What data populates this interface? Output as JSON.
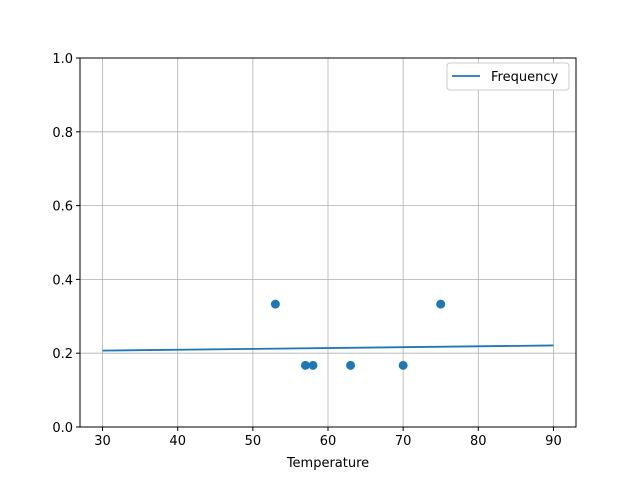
{
  "chart_data": {
    "type": "scatter",
    "title": "",
    "xlabel": "Temperature",
    "ylabel": "",
    "xlim": [
      27,
      93
    ],
    "ylim": [
      0,
      1
    ],
    "xticks": [
      30,
      40,
      50,
      60,
      70,
      80,
      90
    ],
    "yticks": [
      0.0,
      0.2,
      0.4,
      0.6,
      0.8,
      1.0
    ],
    "xtick_labels": [
      "30",
      "40",
      "50",
      "60",
      "70",
      "80",
      "90"
    ],
    "ytick_labels": [
      "0.0",
      "0.2",
      "0.4",
      "0.6",
      "0.8",
      "1.0"
    ],
    "grid": true,
    "legend_position": "top-right",
    "points": {
      "x": [
        53,
        57,
        58,
        63,
        70,
        75
      ],
      "y": [
        0.333,
        0.167,
        0.167,
        0.167,
        0.167,
        0.333
      ],
      "color": "#1f77b4"
    },
    "series": [
      {
        "name": "Frequency",
        "type": "line",
        "x": [
          30,
          90
        ],
        "y": [
          0.207,
          0.221
        ],
        "color": "#1f77b4"
      }
    ]
  }
}
